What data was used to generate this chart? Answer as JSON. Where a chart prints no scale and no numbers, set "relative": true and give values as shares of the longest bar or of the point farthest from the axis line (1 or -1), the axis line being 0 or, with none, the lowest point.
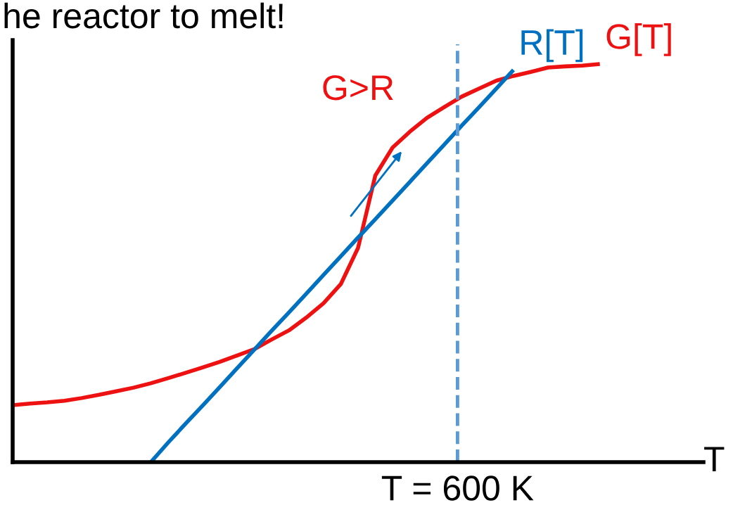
{
  "chart_data": {
    "type": "line",
    "title": "he reactor to melt!",
    "xlabel": "T",
    "relative": true,
    "legend": false,
    "categories": [
      null,
      null,
      null,
      null,
      null,
      null,
      null,
      null,
      null,
      null,
      null,
      null,
      null,
      null,
      null,
      null,
      null,
      null,
      null,
      null,
      null,
      null,
      null,
      null,
      null,
      null,
      null,
      null,
      null,
      null,
      null,
      null,
      null,
      null,
      null,
      null,
      null,
      null,
      null,
      null,
      null
    ],
    "series": [
      {
        "name": "G[T]",
        "color": "#ee1111",
        "values": [
          0.143,
          0.147,
          0.15,
          0.154,
          0.161,
          0.169,
          0.178,
          0.187,
          0.198,
          0.211,
          0.224,
          0.238,
          0.252,
          0.268,
          0.284,
          0.308,
          0.331,
          0.363,
          0.399,
          0.447,
          0.538,
          0.72,
          0.79,
          0.83,
          0.865,
          0.892,
          0.918,
          0.938,
          0.958,
          0.97,
          0.98,
          0.991,
          0.994,
          0.996,
          1,
          null,
          null,
          null,
          null,
          null,
          null
        ]
      },
      {
        "name": "R[T]",
        "color": "#0070c0",
        "values": [
          null,
          null,
          null,
          null,
          null,
          null,
          null,
          null,
          0,
          0.049,
          0.096,
          0.142,
          0.189,
          0.236,
          0.283,
          0.33,
          0.376,
          0.423,
          0.47,
          0.517,
          0.564,
          0.61,
          0.657,
          0.704,
          0.751,
          0.798,
          0.845,
          0.891,
          0.938,
          0.985,
          null,
          null,
          null,
          null,
          null,
          null,
          null,
          null,
          null,
          null,
          null
        ]
      }
    ],
    "annotations": [
      "G>R",
      "T = 600 K"
    ]
  }
}
